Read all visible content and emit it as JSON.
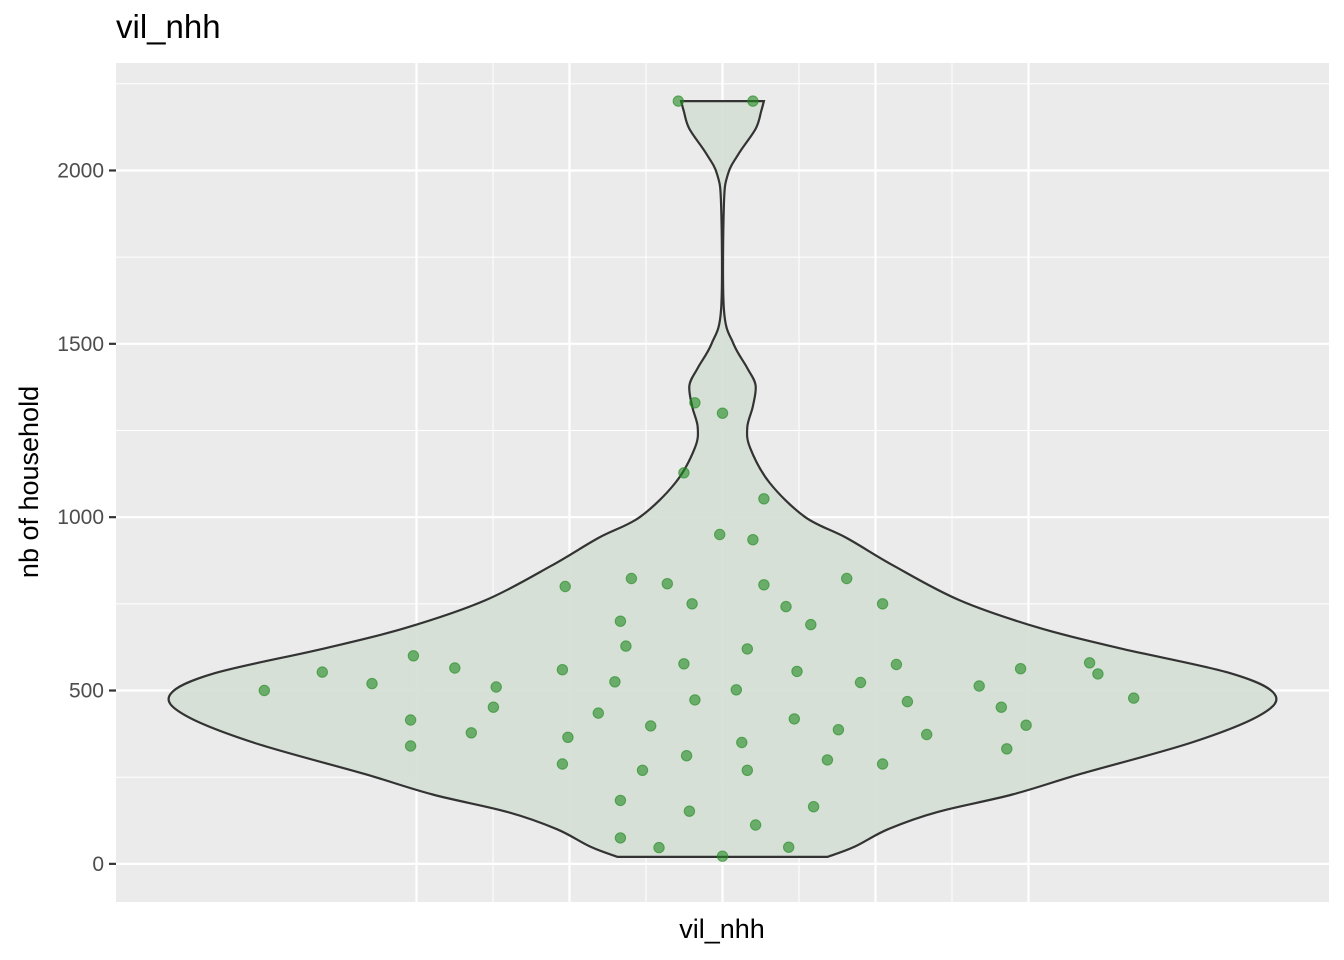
{
  "chart_data": {
    "type": "violin",
    "title": "vil_nhh",
    "xlabel": "vil_nhh",
    "ylabel": "nb of household",
    "y_ticks": [
      0,
      500,
      1000,
      1500,
      2000
    ],
    "ylim": [
      -110,
      2310
    ],
    "grid": true,
    "colors": {
      "panel_background": "#ebebeb",
      "grid": "#ffffff",
      "violin_fill": "#d5dfd5",
      "violin_outline": "#333333",
      "point": "#228B22"
    },
    "violin_width_profile": [
      {
        "y": 20,
        "half_width": 0.38
      },
      {
        "y": 50,
        "half_width": 0.48
      },
      {
        "y": 100,
        "half_width": 0.6
      },
      {
        "y": 150,
        "half_width": 0.78
      },
      {
        "y": 200,
        "half_width": 1.05
      },
      {
        "y": 260,
        "half_width": 1.3
      },
      {
        "y": 350,
        "half_width": 1.7
      },
      {
        "y": 430,
        "half_width": 1.95
      },
      {
        "y": 490,
        "half_width": 2.0
      },
      {
        "y": 550,
        "half_width": 1.84
      },
      {
        "y": 620,
        "half_width": 1.45
      },
      {
        "y": 680,
        "half_width": 1.15
      },
      {
        "y": 760,
        "half_width": 0.86
      },
      {
        "y": 860,
        "half_width": 0.62
      },
      {
        "y": 940,
        "half_width": 0.45
      },
      {
        "y": 1000,
        "half_width": 0.3
      },
      {
        "y": 1100,
        "half_width": 0.17
      },
      {
        "y": 1200,
        "half_width": 0.1
      },
      {
        "y": 1260,
        "half_width": 0.09
      },
      {
        "y": 1320,
        "half_width": 0.11
      },
      {
        "y": 1380,
        "half_width": 0.12
      },
      {
        "y": 1430,
        "half_width": 0.09
      },
      {
        "y": 1500,
        "half_width": 0.04
      },
      {
        "y": 1600,
        "half_width": 0.005
      },
      {
        "y": 1900,
        "half_width": 0.005
      },
      {
        "y": 1990,
        "half_width": 0.02
      },
      {
        "y": 2050,
        "half_width": 0.06
      },
      {
        "y": 2120,
        "half_width": 0.12
      },
      {
        "y": 2170,
        "half_width": 0.14
      },
      {
        "y": 2200,
        "half_width": 0.15
      }
    ],
    "points": [
      {
        "x": -1.66,
        "y": 500
      },
      {
        "x": -1.45,
        "y": 553
      },
      {
        "x": -1.27,
        "y": 520
      },
      {
        "x": -1.12,
        "y": 600
      },
      {
        "x": -1.13,
        "y": 415
      },
      {
        "x": -1.13,
        "y": 340
      },
      {
        "x": -0.97,
        "y": 565
      },
      {
        "x": -0.91,
        "y": 378
      },
      {
        "x": -0.83,
        "y": 452
      },
      {
        "x": -0.82,
        "y": 510
      },
      {
        "x": -0.57,
        "y": 800
      },
      {
        "x": -0.58,
        "y": 560
      },
      {
        "x": -0.56,
        "y": 365
      },
      {
        "x": -0.58,
        "y": 288
      },
      {
        "x": -0.45,
        "y": 435
      },
      {
        "x": -0.39,
        "y": 525
      },
      {
        "x": -0.37,
        "y": 700
      },
      {
        "x": -0.35,
        "y": 628
      },
      {
        "x": -0.33,
        "y": 823
      },
      {
        "x": -0.37,
        "y": 183
      },
      {
        "x": -0.37,
        "y": 75
      },
      {
        "x": -0.26,
        "y": 398
      },
      {
        "x": -0.29,
        "y": 270
      },
      {
        "x": -0.23,
        "y": 47
      },
      {
        "x": -0.2,
        "y": 808
      },
      {
        "x": -0.14,
        "y": 1128
      },
      {
        "x": -0.14,
        "y": 577
      },
      {
        "x": -0.13,
        "y": 312
      },
      {
        "x": -0.11,
        "y": 750
      },
      {
        "x": -0.12,
        "y": 152
      },
      {
        "x": -0.1,
        "y": 1330
      },
      {
        "x": -0.1,
        "y": 473
      },
      {
        "x": -0.16,
        "y": 2200
      },
      {
        "x": 0.0,
        "y": 1300
      },
      {
        "x": -0.01,
        "y": 950
      },
      {
        "x": 0.0,
        "y": 22
      },
      {
        "x": 0.05,
        "y": 502
      },
      {
        "x": 0.07,
        "y": 350
      },
      {
        "x": 0.09,
        "y": 620
      },
      {
        "x": 0.09,
        "y": 270
      },
      {
        "x": 0.11,
        "y": 935
      },
      {
        "x": 0.11,
        "y": 2200
      },
      {
        "x": 0.12,
        "y": 112
      },
      {
        "x": 0.15,
        "y": 1053
      },
      {
        "x": 0.15,
        "y": 805
      },
      {
        "x": 0.23,
        "y": 742
      },
      {
        "x": 0.24,
        "y": 48
      },
      {
        "x": 0.26,
        "y": 418
      },
      {
        "x": 0.27,
        "y": 555
      },
      {
        "x": 0.32,
        "y": 690
      },
      {
        "x": 0.33,
        "y": 165
      },
      {
        "x": 0.38,
        "y": 300
      },
      {
        "x": 0.42,
        "y": 387
      },
      {
        "x": 0.45,
        "y": 823
      },
      {
        "x": 0.5,
        "y": 523
      },
      {
        "x": 0.58,
        "y": 750
      },
      {
        "x": 0.58,
        "y": 288
      },
      {
        "x": 0.63,
        "y": 575
      },
      {
        "x": 0.67,
        "y": 468
      },
      {
        "x": 0.74,
        "y": 373
      },
      {
        "x": 0.93,
        "y": 513
      },
      {
        "x": 1.01,
        "y": 452
      },
      {
        "x": 1.03,
        "y": 332
      },
      {
        "x": 1.08,
        "y": 563
      },
      {
        "x": 1.1,
        "y": 400
      },
      {
        "x": 1.33,
        "y": 580
      },
      {
        "x": 1.36,
        "y": 548
      },
      {
        "x": 1.49,
        "y": 478
      }
    ]
  }
}
